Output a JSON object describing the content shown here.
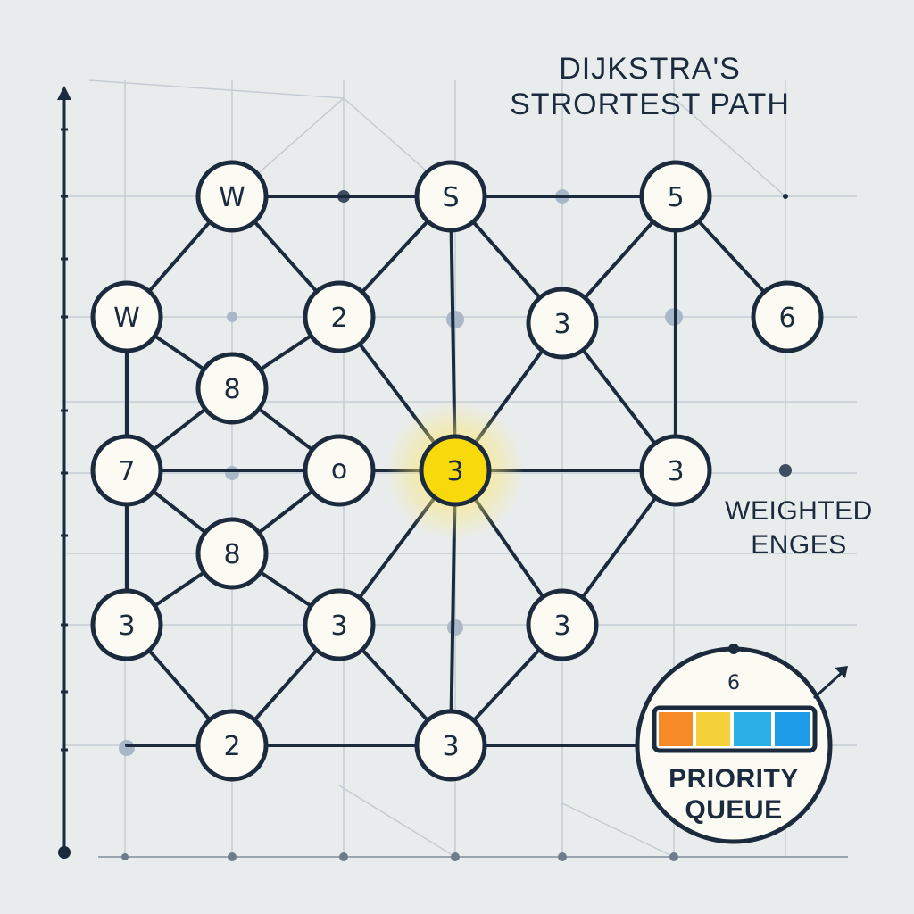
{
  "title": {
    "line1": "DIJKSTRA'S",
    "line2": "STRORTEST PATH"
  },
  "side_label": {
    "line1": "WEIGHTED",
    "line2": "ENGES"
  },
  "priority_queue": {
    "top_label": "6",
    "line1": "PRIORITY",
    "line2": "QUEUE",
    "colors": [
      "#f58a26",
      "#f4d13a",
      "#2bb0e6",
      "#1e9be8"
    ]
  },
  "colors": {
    "background": "#e9ecec",
    "grid": "#c4ccd4",
    "edge": "#1b2a3d",
    "node_fill": "#fbfaf3",
    "highlight": "#f7d90c"
  },
  "nodes": {
    "n1": "W",
    "n2": "S",
    "n3": "5",
    "n4": "W",
    "n5": "2",
    "n6": "3",
    "n7": "6",
    "n8": "8",
    "n9": "7",
    "n10": "o",
    "n11": "3",
    "n12": "3",
    "n13": "8",
    "n14": "3",
    "n15": "3",
    "n16": "3",
    "n17": "2",
    "n18": "3"
  }
}
